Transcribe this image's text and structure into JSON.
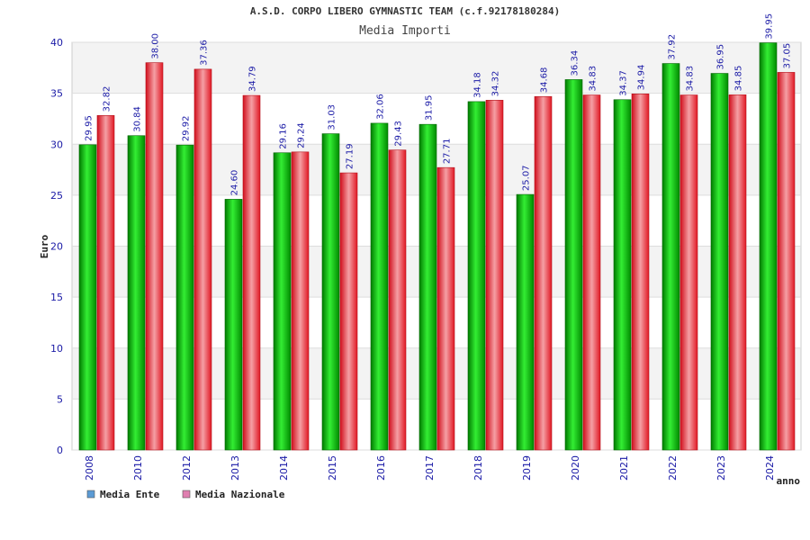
{
  "chart_data": {
    "type": "bar",
    "title": "A.S.D. CORPO LIBERO GYMNASTIC TEAM (c.f.92178180284)",
    "subtitle": "Media Importi",
    "ylabel": "Euro",
    "xlabel": "anno",
    "ylim": [
      0,
      40
    ],
    "yticks": [
      0,
      5,
      10,
      15,
      20,
      25,
      30,
      35,
      40
    ],
    "categories": [
      "2008",
      "2010",
      "2012",
      "2013",
      "2014",
      "2015",
      "2016",
      "2017",
      "2018",
      "2019",
      "2020",
      "2021",
      "2022",
      "2023",
      "2024"
    ],
    "series": [
      {
        "name": "Media Ente",
        "color": "#00a000",
        "legend_color": "#5b9bd5",
        "values": [
          29.95,
          30.84,
          29.92,
          24.6,
          29.16,
          31.03,
          32.06,
          31.95,
          34.18,
          25.07,
          36.34,
          34.37,
          37.92,
          36.95,
          39.95
        ],
        "labels": [
          "29.95",
          "30.84",
          "29.92",
          "24.60",
          "29.16",
          "31.03",
          "32.06",
          "31.95",
          "34.18",
          "25.07",
          "36.34",
          "34.37",
          "37.92",
          "36.95",
          "39.95"
        ]
      },
      {
        "name": "Media Nazionale",
        "color": "#e8222e",
        "legend_color": "#e07fb0",
        "values": [
          32.82,
          38.0,
          37.36,
          34.79,
          29.24,
          27.19,
          29.43,
          27.71,
          34.32,
          34.68,
          34.83,
          34.94,
          34.83,
          34.85,
          37.05
        ],
        "labels": [
          "32.82",
          "38.00",
          "37.36",
          "34.79",
          "29.24",
          "27.19",
          "29.43",
          "27.71",
          "34.32",
          "34.68",
          "34.83",
          "34.94",
          "34.83",
          "34.85",
          "37.05"
        ]
      }
    ],
    "grid": true,
    "legend": "bottom-left"
  }
}
